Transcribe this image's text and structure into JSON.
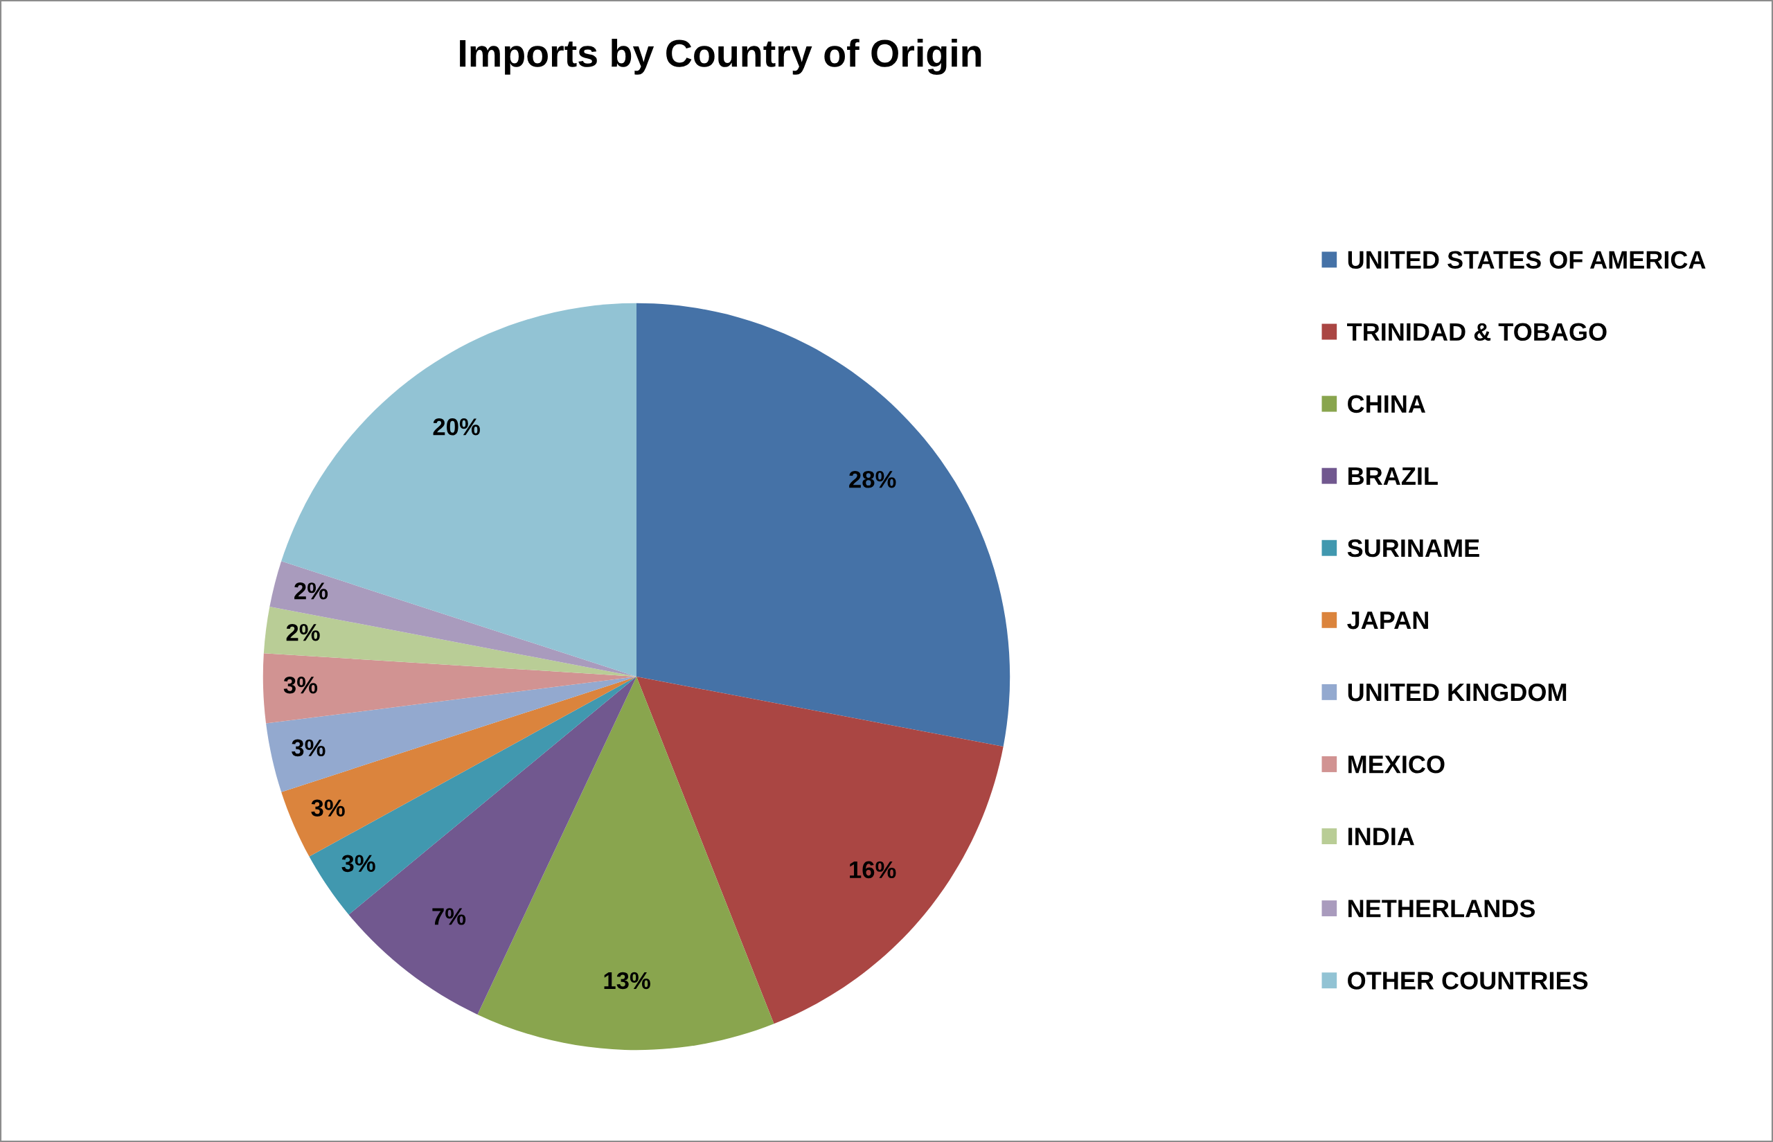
{
  "chart_data": {
    "type": "pie",
    "title": "Imports by Country of Origin",
    "categories": [
      "UNITED STATES OF AMERICA",
      "TRINIDAD & TOBAGO",
      "CHINA",
      "BRAZIL",
      "SURINAME",
      "JAPAN",
      "UNITED KINGDOM",
      "MEXICO",
      "INDIA",
      "NETHERLANDS",
      "OTHER COUNTRIES"
    ],
    "values": [
      28,
      16,
      13,
      7,
      3,
      3,
      3,
      3,
      2,
      2,
      20
    ],
    "colors": [
      "#4572a7",
      "#aa4643",
      "#89a54e",
      "#71588f",
      "#4198af",
      "#db843d",
      "#93a9cf",
      "#d19392",
      "#b9cd96",
      "#a99bbd",
      "#92c3d4"
    ],
    "value_labels": [
      "28%",
      "16%",
      "13%",
      "7%",
      "3%",
      "3%",
      "3%",
      "3%",
      "2%",
      "2%",
      "20%"
    ],
    "legend": "right"
  }
}
